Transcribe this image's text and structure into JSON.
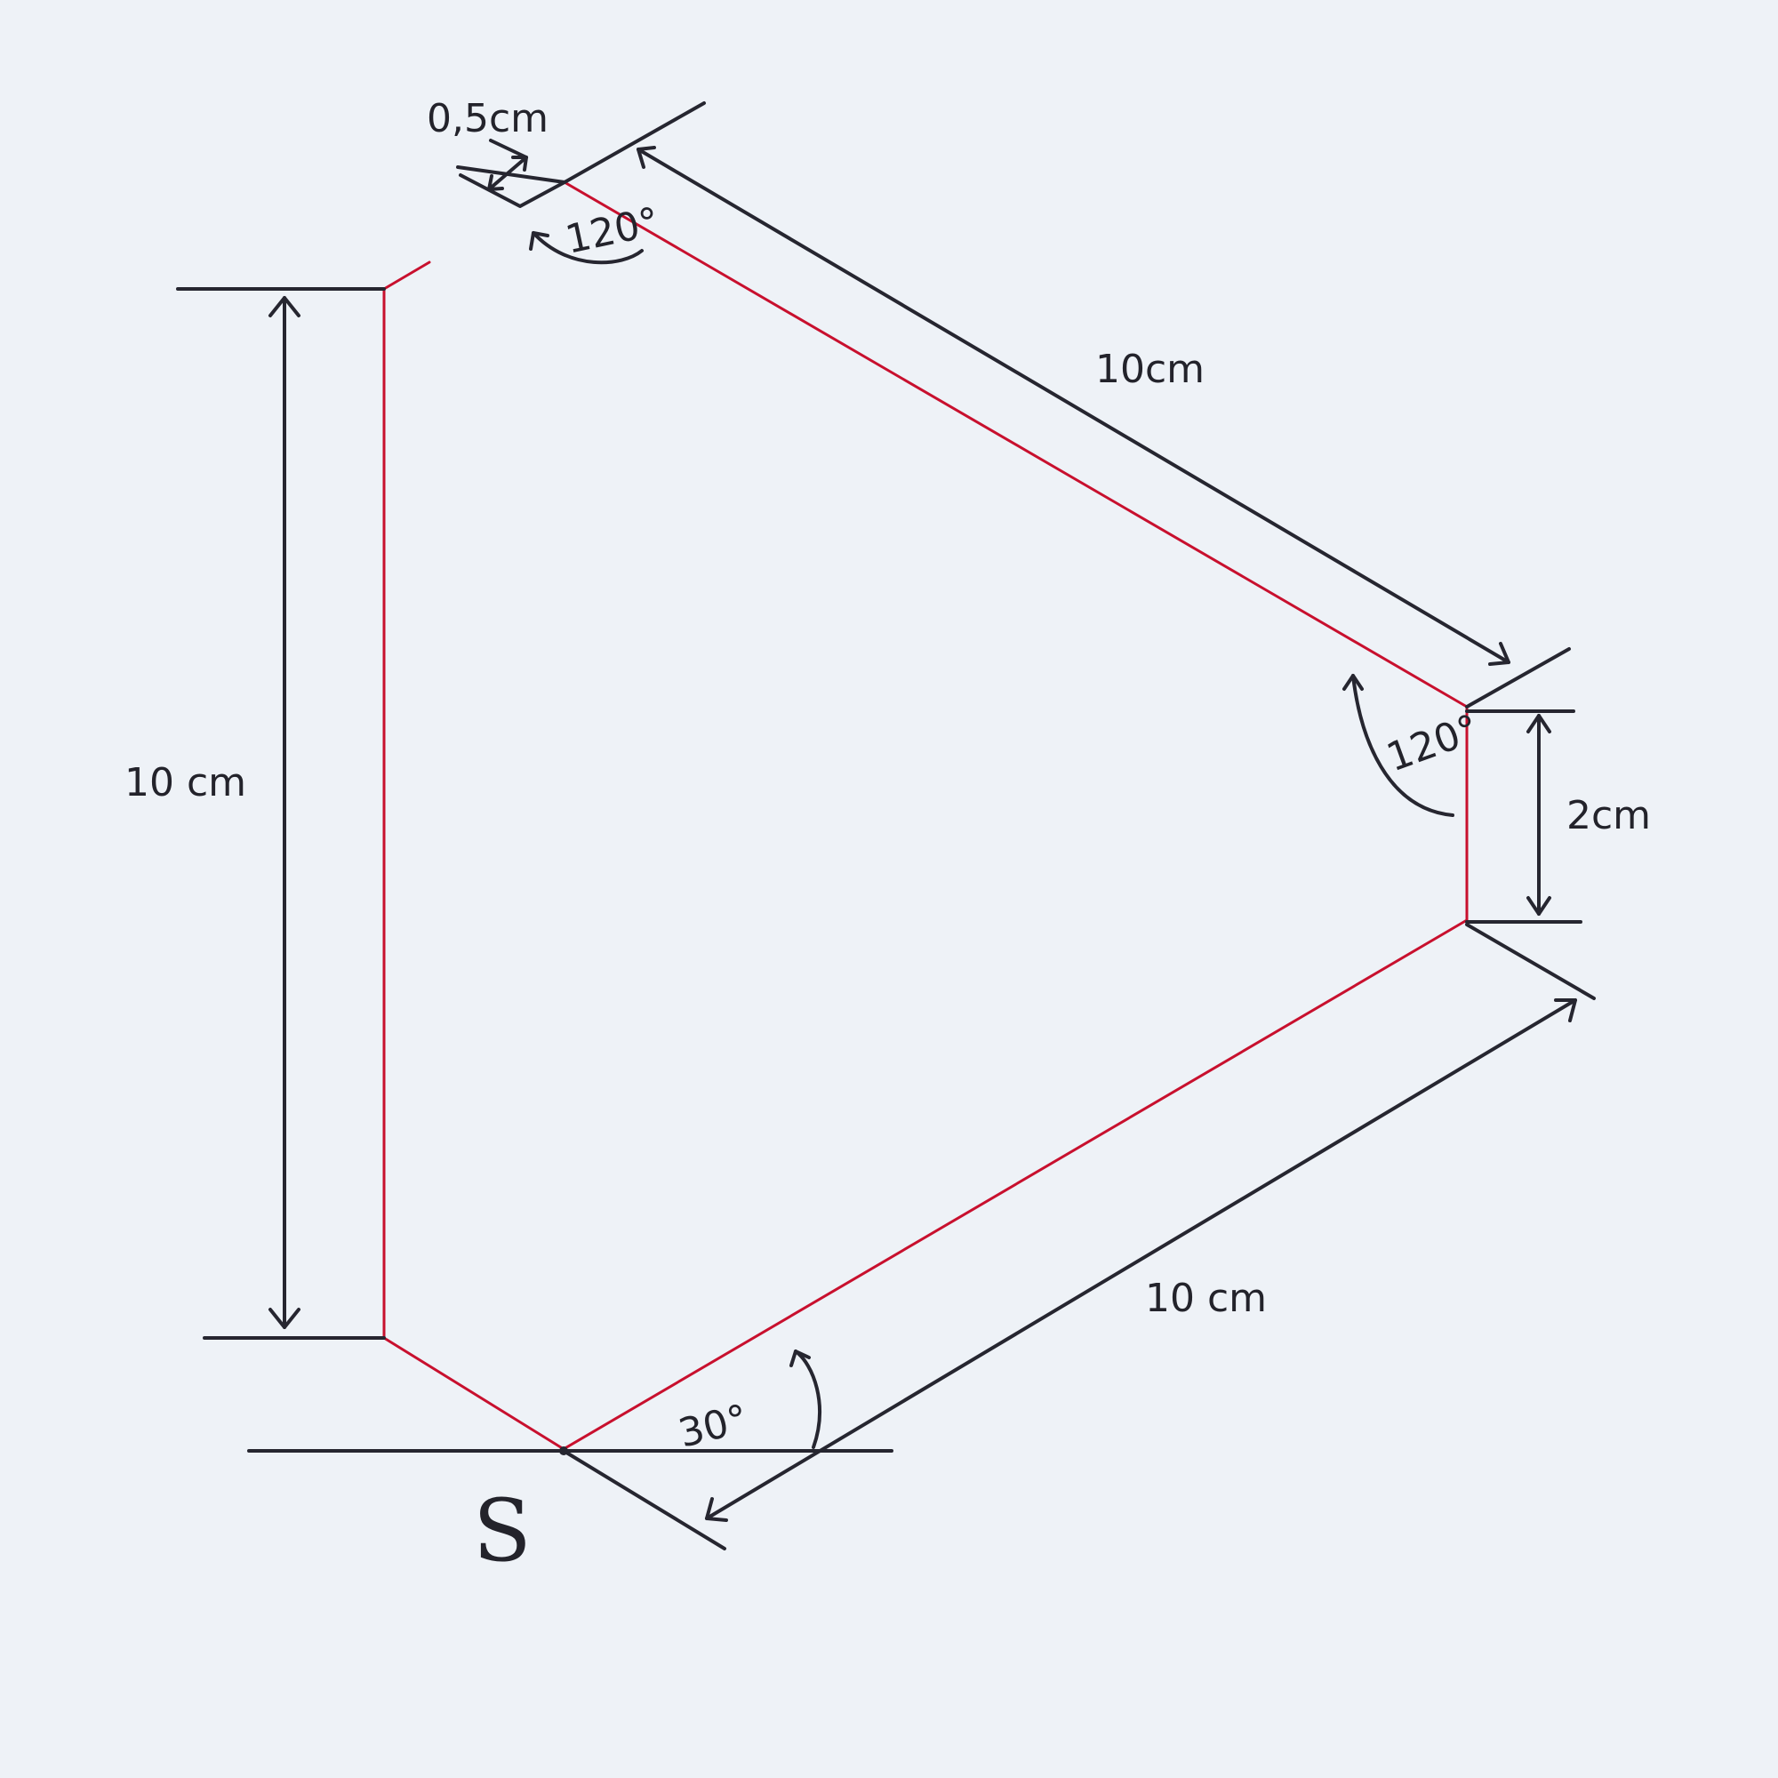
{
  "figure": {
    "paper_color": "#eef2f7",
    "outline_color": "#c8102e",
    "ink_color": "#262630"
  },
  "labels": {
    "top_offset": "0,5cm",
    "top_angle": "120°",
    "upper_edge": "10cm",
    "left_edge": "10 cm",
    "right_angle": "120°",
    "right_edge": "2cm",
    "lower_edge": "10 cm",
    "bottom_angle": "30°",
    "point": "S"
  }
}
